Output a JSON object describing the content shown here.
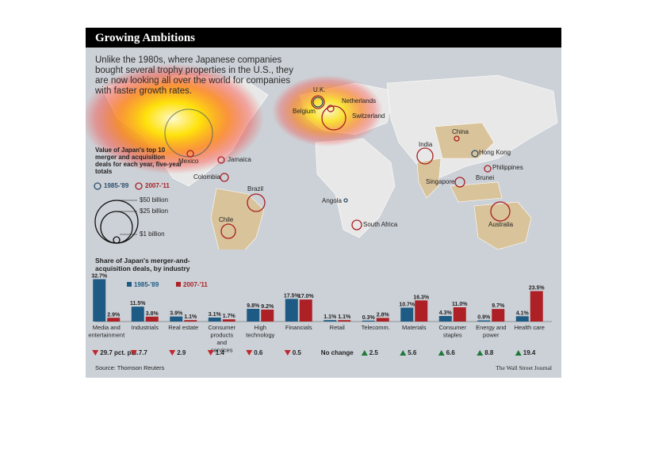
{
  "header": {
    "title": "Growing Ambitions"
  },
  "intro_text": "Unlike the 1980s, where Japanese companies bought several trophy properties in the U.S., they are now looking all over the world for companies with faster growth rates.",
  "map": {
    "legend_title": "Value of Japan's top 10 merger and acquisition deals for each year, five-year totals",
    "legend_periods": [
      "1985-'89",
      "2007-'11"
    ],
    "size_key": [
      "$50 billion",
      "$25 billion",
      "$1 billion"
    ],
    "countries": [
      {
        "name": "U.K."
      },
      {
        "name": "Netherlands"
      },
      {
        "name": "Belgium"
      },
      {
        "name": "Switzerland"
      },
      {
        "name": "China"
      },
      {
        "name": "India"
      },
      {
        "name": "Hong Kong"
      },
      {
        "name": "Philippines"
      },
      {
        "name": "Brunei"
      },
      {
        "name": "Singapore"
      },
      {
        "name": "Mexico"
      },
      {
        "name": "Jamaica"
      },
      {
        "name": "Colombia"
      },
      {
        "name": "Brazil"
      },
      {
        "name": "Chile"
      },
      {
        "name": "Angola"
      },
      {
        "name": "South Africa"
      },
      {
        "name": "Australia"
      }
    ]
  },
  "chart_data": {
    "type": "bar",
    "title": "Share of Japan's merger-and-acquisition deals, by industry",
    "categories": [
      "Media and entertainment",
      "Industrials",
      "Real estate",
      "Consumer products and services",
      "High technology",
      "Financials",
      "Retail",
      "Telecomm.",
      "Materials",
      "Consumer staples",
      "Energy and power",
      "Health care"
    ],
    "series": [
      {
        "name": "1985-'89",
        "color": "#1e5b84",
        "values": [
          32.7,
          11.5,
          3.9,
          3.1,
          9.8,
          17.5,
          1.1,
          0.3,
          10.7,
          4.3,
          0.9,
          4.1
        ],
        "labels": [
          "32.7%",
          "11.5%",
          "3.9%",
          "3.1%",
          "9.8%",
          "17.5%",
          "1.1%",
          "0.3%",
          "10.7%",
          "4.3%",
          "0.9%",
          "4.1%"
        ]
      },
      {
        "name": "2007-'11",
        "color": "#ad2025",
        "values": [
          2.9,
          3.8,
          1.1,
          1.7,
          9.2,
          17.0,
          1.1,
          2.8,
          16.3,
          11.0,
          9.7,
          23.5
        ],
        "labels": [
          "2.9%",
          "3.8%",
          "1.1%",
          "1.7%",
          "9.2%",
          "17.0%",
          "1.1%",
          "2.8%",
          "16.3%",
          "11.0%",
          "9.7%",
          "23.5%"
        ]
      }
    ],
    "changes": [
      {
        "dir": "down",
        "text": "29.7 pct. pts."
      },
      {
        "dir": "down",
        "text": "7.7"
      },
      {
        "dir": "down",
        "text": "2.9"
      },
      {
        "dir": "down",
        "text": "1.4"
      },
      {
        "dir": "down",
        "text": "0.6"
      },
      {
        "dir": "down",
        "text": "0.5"
      },
      {
        "dir": "none",
        "text": "No change"
      },
      {
        "dir": "up",
        "text": "2.5"
      },
      {
        "dir": "up",
        "text": "5.6"
      },
      {
        "dir": "up",
        "text": "6.6"
      },
      {
        "dir": "up",
        "text": "8.8"
      },
      {
        "dir": "up",
        "text": "19.4"
      }
    ],
    "ylim": [
      0,
      33
    ]
  },
  "footer": {
    "source": "Source: Thomson Reuters",
    "credit": "The Wall Street Journal"
  }
}
